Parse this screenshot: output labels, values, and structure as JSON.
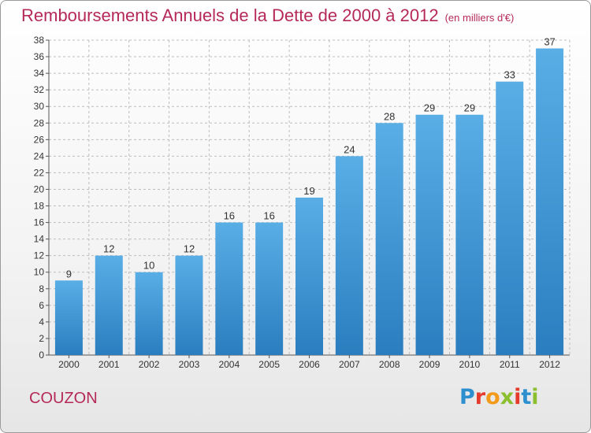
{
  "header": {
    "title": "Remboursements Annuels de la Dette de 2000 à 2012",
    "subtitle": "(en milliers d'€)"
  },
  "footer": {
    "place": "COUZON",
    "logo_letters": [
      "P",
      "r",
      "o",
      "x",
      "i",
      "t",
      "i"
    ]
  },
  "colors": {
    "bar_top": "#5aaee6",
    "bar_bottom": "#2a7ebf",
    "title": "#b5295a",
    "grid": "#bdbdbd"
  },
  "chart_data": {
    "type": "bar",
    "title": "Remboursements Annuels de la Dette de 2000 à 2012",
    "subtitle": "(en milliers d'€)",
    "xlabel": "",
    "ylabel": "",
    "categories": [
      "2000",
      "2001",
      "2002",
      "2003",
      "2004",
      "2005",
      "2006",
      "2007",
      "2008",
      "2009",
      "2010",
      "2011",
      "2012"
    ],
    "values": [
      9,
      12,
      10,
      12,
      16,
      16,
      19,
      24,
      28,
      29,
      29,
      33,
      37
    ],
    "ylim": [
      0,
      38
    ],
    "ytick_step": 2,
    "grid": true,
    "data_labels": true
  }
}
